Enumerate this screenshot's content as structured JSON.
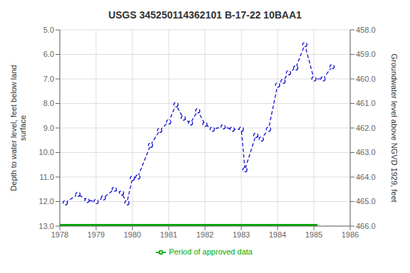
{
  "chart_data": {
    "type": "line",
    "title": "USGS 345250114362101 B-17-22 10BAA1",
    "y_label": "Depth to water level, feet below land\nsurface",
    "y2_label": "Groundwater level above NGVD 1929, feet",
    "x": [
      1978.15,
      1978.5,
      1978.75,
      1979.0,
      1979.2,
      1979.5,
      1979.7,
      1979.85,
      1980.0,
      1980.15,
      1980.5,
      1980.75,
      1981.0,
      1981.2,
      1981.4,
      1981.6,
      1981.8,
      1982.0,
      1982.2,
      1982.5,
      1982.75,
      1983.0,
      1983.1,
      1983.4,
      1983.55,
      1983.75,
      1984.0,
      1984.15,
      1984.3,
      1984.5,
      1984.75,
      1985.0,
      1985.25,
      1985.5
    ],
    "series": [
      {
        "values": [
          12.05,
          11.7,
          11.95,
          12.0,
          11.85,
          11.5,
          11.65,
          12.05,
          11.05,
          11.0,
          9.7,
          9.1,
          8.75,
          8.05,
          8.6,
          8.8,
          8.3,
          8.85,
          9.05,
          8.95,
          9.05,
          9.05,
          10.7,
          9.3,
          9.45,
          9.05,
          7.25,
          7.1,
          6.75,
          6.55,
          5.6,
          7.0,
          7.0,
          6.5
        ],
        "color": "#0000CC",
        "line_style": "dashed",
        "marker": "circle"
      },
      {
        "name": "Period of approved data",
        "x": [
          1978,
          1985.1
        ],
        "values": [
          13.0,
          13.0
        ],
        "color": "#00AA00",
        "line_style": "solid",
        "marker": "none"
      }
    ],
    "xlim": [
      1978,
      1986
    ],
    "xticks": [
      1978,
      1979,
      1980,
      1981,
      1982,
      1983,
      1984,
      1985,
      1986
    ],
    "ylim": [
      13.0,
      5.0
    ],
    "yticks": [
      {
        "value": 5.0,
        "label": "5.0"
      },
      {
        "value": 6.0,
        "label": "6.0"
      },
      {
        "value": 7.0,
        "label": "7.0"
      },
      {
        "value": 8.0,
        "label": "8.0"
      },
      {
        "value": 9.0,
        "label": "9.0"
      },
      {
        "value": 10.0,
        "label": "10.0"
      },
      {
        "value": 11.0,
        "label": "11.0"
      },
      {
        "value": 12.0,
        "label": "12.0"
      },
      {
        "value": 13.0,
        "label": "13.0"
      }
    ],
    "y2lim": [
      466.0,
      458.0
    ],
    "y2ticks": [
      {
        "value": 458.0,
        "label": "458.0"
      },
      {
        "value": 459.0,
        "label": "459.0"
      },
      {
        "value": 460.0,
        "label": "460.0"
      },
      {
        "value": 461.0,
        "label": "461.0"
      },
      {
        "value": 462.0,
        "label": "462.0"
      },
      {
        "value": 463.0,
        "label": "463.0"
      },
      {
        "value": 464.0,
        "label": "464.0"
      },
      {
        "value": 465.0,
        "label": "465.0"
      },
      {
        "value": 466.0,
        "label": "466.0"
      }
    ],
    "grid": true,
    "legend": "bottom"
  }
}
